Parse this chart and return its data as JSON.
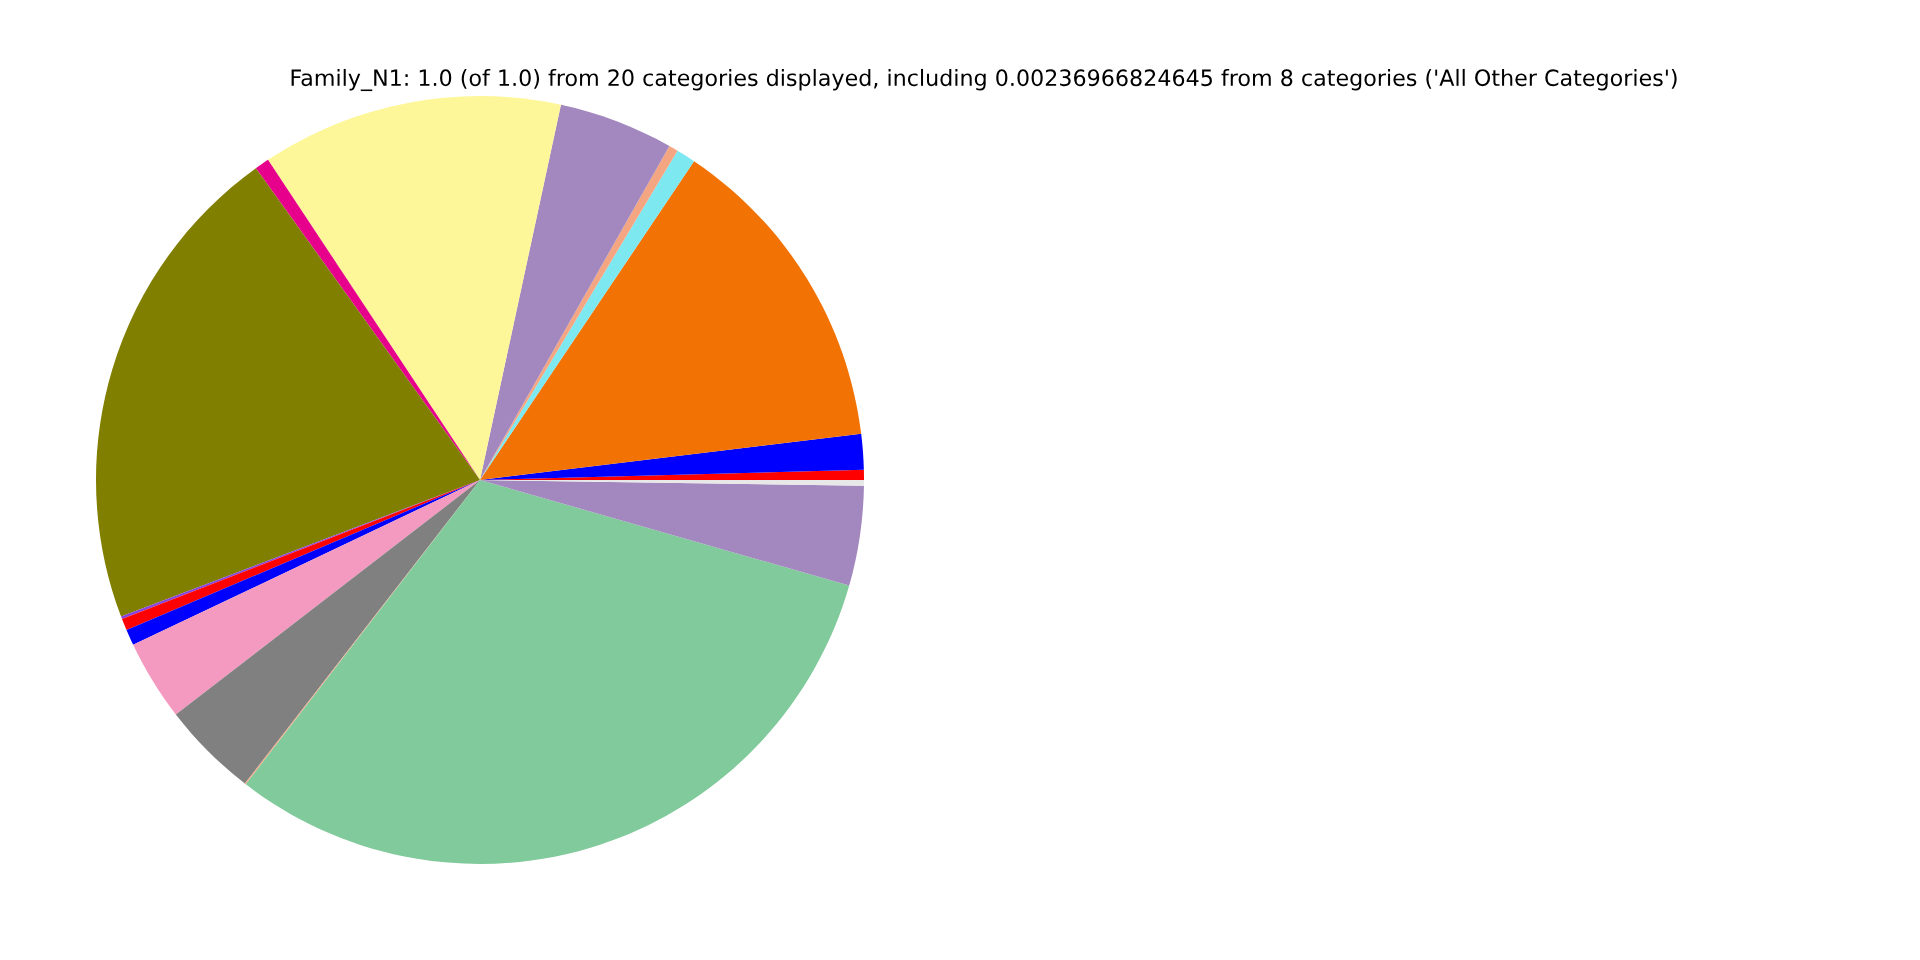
{
  "chart_data": {
    "type": "pie",
    "title": "Family_N1: 1.0 (of 1.0) from 20 categories displayed, including 0.00236966824645 from 8 categories ('All Other Categories')",
    "categories": [
      null,
      null,
      null,
      null,
      null,
      null,
      null,
      null,
      null,
      null,
      null,
      null,
      null,
      null,
      null,
      null,
      null,
      null
    ],
    "values": [
      0.42,
      1.5,
      13.67,
      0.81,
      0.39,
      4.83,
      12.69,
      0.61,
      20.86,
      0.11,
      0.5,
      0.67,
      3.39,
      4.06,
      0.05,
      31.01,
      4.19,
      0.24
    ],
    "colors": [
      "#ff0000",
      "#0000ff",
      "#f27304",
      "#7de8f0",
      "#f4a582",
      "#a288be",
      "#fef799",
      "#e7008b",
      "#807f00",
      "#8844dd",
      "#ff0000",
      "#0000ff",
      "#f49ac1",
      "#808080",
      "#f4a582",
      "#80ca9b",
      "#a288be",
      "#e8e8e8"
    ]
  }
}
